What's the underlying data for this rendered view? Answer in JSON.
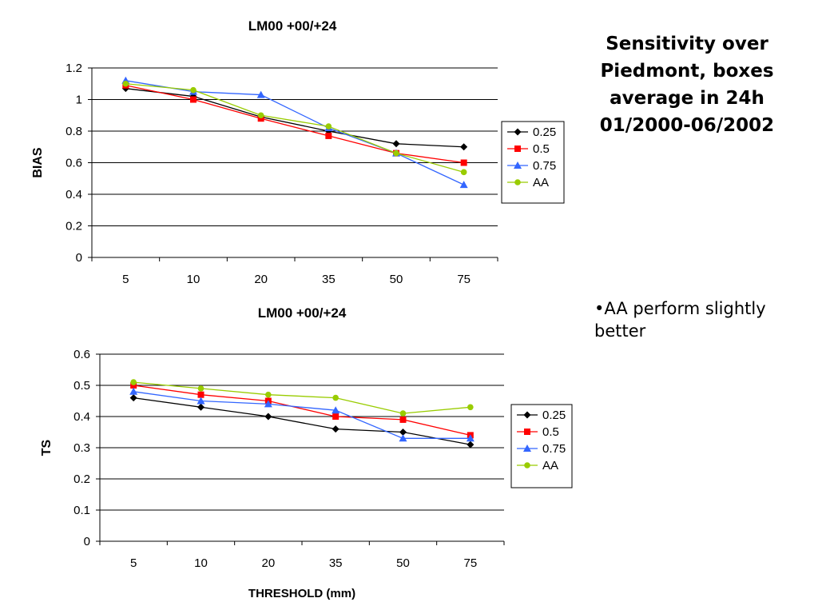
{
  "slide": {
    "title_lines": [
      "Sensitivity over",
      "Piedmont, boxes",
      "average in 24h",
      "01/2000-06/2002"
    ],
    "bullet": "•AA perform slightly better"
  },
  "chart_data": [
    {
      "type": "line",
      "title": "LM00 +00/+24",
      "xlabel": "",
      "ylabel": "BIAS",
      "categories": [
        "5",
        "10",
        "20",
        "35",
        "50",
        "75"
      ],
      "ylim": [
        0,
        1.2
      ],
      "yticks": [
        "0",
        "0.2",
        "0.4",
        "0.6",
        "0.8",
        "1",
        "1.2"
      ],
      "grid": true,
      "legend_position": "right",
      "series": [
        {
          "name": "0.25",
          "color": "#000000",
          "marker": "diamond",
          "values": [
            1.07,
            1.02,
            0.89,
            0.8,
            0.72,
            0.7
          ]
        },
        {
          "name": "0.5",
          "color": "#ff0000",
          "marker": "square",
          "values": [
            1.09,
            1.0,
            0.88,
            0.77,
            0.66,
            0.6
          ]
        },
        {
          "name": "0.75",
          "color": "#3366ff",
          "marker": "triangle",
          "values": [
            1.12,
            1.05,
            1.03,
            0.82,
            0.66,
            0.46
          ]
        },
        {
          "name": "AA",
          "color": "#99cc00",
          "marker": "circle",
          "values": [
            1.1,
            1.06,
            0.9,
            0.83,
            0.66,
            0.54
          ]
        }
      ]
    },
    {
      "type": "line",
      "title": "LM00 +00/+24",
      "xlabel": "THRESHOLD (mm)",
      "ylabel": "TS",
      "categories": [
        "5",
        "10",
        "20",
        "35",
        "50",
        "75"
      ],
      "ylim": [
        0,
        0.6
      ],
      "yticks": [
        "0",
        "0.1",
        "0.2",
        "0.3",
        "0.4",
        "0.5",
        "0.6"
      ],
      "grid": true,
      "legend_position": "right",
      "series": [
        {
          "name": "0.25",
          "color": "#000000",
          "marker": "diamond",
          "values": [
            0.46,
            0.43,
            0.4,
            0.36,
            0.35,
            0.31
          ]
        },
        {
          "name": "0.5",
          "color": "#ff0000",
          "marker": "square",
          "values": [
            0.5,
            0.47,
            0.45,
            0.4,
            0.39,
            0.34
          ]
        },
        {
          "name": "0.75",
          "color": "#3366ff",
          "marker": "triangle",
          "values": [
            0.48,
            0.45,
            0.44,
            0.42,
            0.33,
            0.33
          ]
        },
        {
          "name": "AA",
          "color": "#99cc00",
          "marker": "circle",
          "values": [
            0.51,
            0.49,
            0.47,
            0.46,
            0.41,
            0.43
          ]
        }
      ]
    }
  ]
}
